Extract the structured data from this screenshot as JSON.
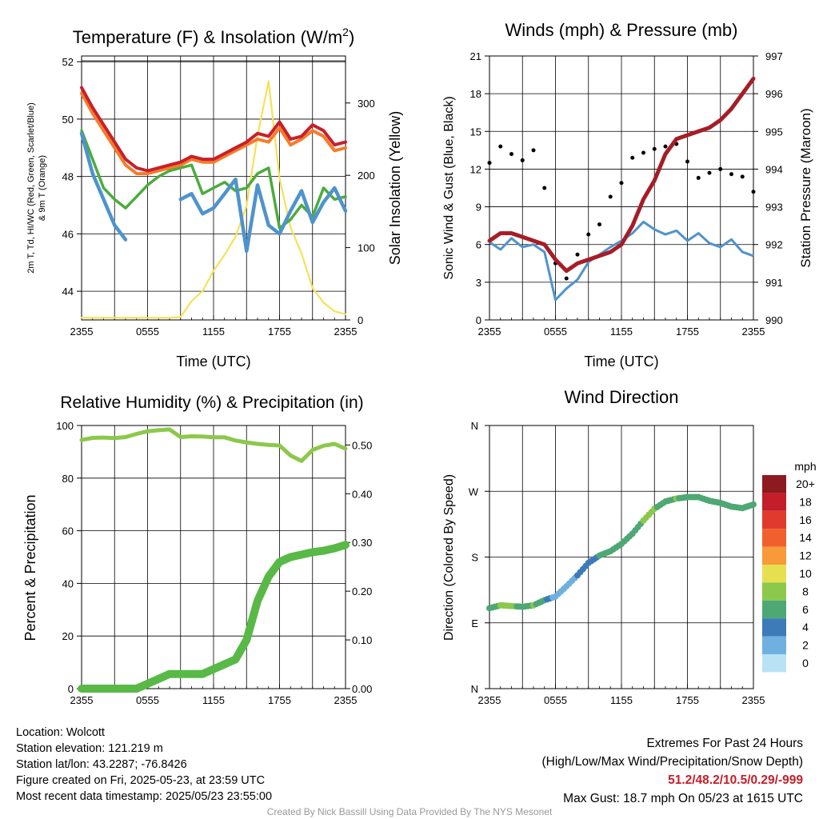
{
  "chart_data": [
    {
      "type": "line",
      "title": "Temperature (F) & Insolation (W/m2)",
      "title_main": "Temperature (F) & Insolation (W/m",
      "title_sup": "2",
      "title_end": ")",
      "xlabel": "Time (UTC)",
      "ylabel_left_line1": "2m T, Td, HI/WC (Red, Green, Scarlet/Blue)",
      "ylabel_left_line2": "& 9m T (Orange)",
      "ylabel_right": "Solar Insolation (Yellow)",
      "x_ticks": [
        "2355",
        "0555",
        "1155",
        "1755",
        "2355"
      ],
      "y_left_ticks": [
        44,
        46,
        48,
        50,
        52
      ],
      "y_left_lim": [
        43,
        52.2
      ],
      "y_right_ticks": [
        0,
        100,
        200,
        300
      ],
      "y_right_lim": [
        0,
        365
      ],
      "x_hours": [
        0,
        1,
        2,
        3,
        4,
        5,
        6,
        7,
        8,
        9,
        10,
        11,
        12,
        13,
        14,
        15,
        16,
        17,
        18,
        19,
        20,
        21,
        22,
        23,
        24
      ],
      "series": [
        {
          "color": "#c8202a",
          "axis": "left",
          "values": [
            51.1,
            50.4,
            49.8,
            49.2,
            48.6,
            48.3,
            48.2,
            48.3,
            48.4,
            48.5,
            48.7,
            48.6,
            48.6,
            48.8,
            49.0,
            49.2,
            49.5,
            49.4,
            49.9,
            49.3,
            49.4,
            49.8,
            49.6,
            49.1,
            49.2
          ]
        },
        {
          "color": "#f47c2a",
          "axis": "left",
          "values": [
            50.9,
            50.2,
            49.6,
            49.0,
            48.4,
            48.1,
            48.1,
            48.2,
            48.3,
            48.4,
            48.6,
            48.5,
            48.5,
            48.7,
            48.9,
            49.1,
            49.3,
            49.2,
            49.7,
            49.1,
            49.3,
            49.6,
            49.4,
            48.9,
            49.0
          ]
        },
        {
          "color": "#4bac3c",
          "axis": "left",
          "values": [
            49.6,
            48.6,
            47.6,
            47.2,
            46.9,
            47.3,
            47.7,
            48.0,
            48.2,
            48.3,
            48.4,
            47.4,
            47.6,
            47.8,
            47.5,
            47.6,
            48.1,
            48.3,
            46.2,
            46.5,
            47.0,
            46.6,
            47.6,
            47.2,
            47.3
          ]
        },
        {
          "color": "#4f93cc",
          "axis": "left",
          "values": [
            49.5,
            48.1,
            47.2,
            46.3,
            45.8,
            null,
            null,
            null,
            null,
            47.2,
            47.4,
            46.7,
            46.9,
            47.4,
            47.9,
            45.4,
            47.7,
            46.3,
            46.0,
            46.8,
            47.5,
            46.4,
            47.1,
            47.6,
            46.8
          ]
        },
        {
          "color": "#f5e15a",
          "axis": "right",
          "values": [
            3,
            3,
            3,
            3,
            3,
            3,
            3,
            3,
            3,
            4,
            26,
            40,
            68,
            90,
            115,
            158,
            255,
            330,
            196,
            128,
            92,
            44,
            24,
            12,
            8
          ]
        }
      ]
    },
    {
      "type": "line",
      "title": "Winds (mph) & Pressure (mb)",
      "xlabel": "Time (UTC)",
      "ylabel_left": "Sonic Wind & Gust (Blue, Black)",
      "ylabel_right": "Station Pressure (Maroon)",
      "x_ticks": [
        "2355",
        "0555",
        "1155",
        "1755",
        "2355"
      ],
      "y_left_ticks": [
        0,
        3,
        6,
        9,
        12,
        15,
        18,
        21
      ],
      "y_left_lim": [
        0,
        21
      ],
      "y_right_ticks": [
        990,
        991,
        992,
        993,
        994,
        995,
        996,
        997
      ],
      "y_right_lim": [
        990,
        997
      ],
      "x_hours": [
        0,
        1,
        2,
        3,
        4,
        5,
        6,
        7,
        8,
        9,
        10,
        11,
        12,
        13,
        14,
        15,
        16,
        17,
        18,
        19,
        20,
        21,
        22,
        23,
        24
      ],
      "series": [
        {
          "color": "#4f93cc",
          "axis": "left",
          "values": [
            6.2,
            5.6,
            6.5,
            5.8,
            6.0,
            5.4,
            1.6,
            2.5,
            3.2,
            4.6,
            5.2,
            5.8,
            6.3,
            6.9,
            7.8,
            7.2,
            6.8,
            7.1,
            6.3,
            6.9,
            6.1,
            5.8,
            6.4,
            5.4,
            5.1
          ]
        },
        {
          "color": "#a51d26",
          "axis": "right",
          "values": [
            992.1,
            992.3,
            992.3,
            992.2,
            992.1,
            992.0,
            991.6,
            991.3,
            991.5,
            991.6,
            991.7,
            991.8,
            992.0,
            992.5,
            993.2,
            993.7,
            994.4,
            994.8,
            994.9,
            995.0,
            995.1,
            995.3,
            995.6,
            996.0,
            996.4
          ]
        },
        {
          "color": "#000000",
          "axis": "left",
          "scatter": true,
          "values": [
            12.5,
            13.8,
            13.2,
            12.7,
            13.5,
            10.5,
            4.5,
            3.3,
            5.2,
            6.8,
            7.6,
            9.8,
            10.9,
            12.9,
            13.3,
            13.6,
            13.8,
            14.0,
            12.6,
            11.3,
            11.7,
            12.0,
            11.6,
            11.4,
            10.2
          ]
        }
      ]
    },
    {
      "type": "line",
      "title": "Relative Humidity (%) & Precipitation (in)",
      "ylabel_left": "Percent & Precipitation",
      "x_ticks": [
        "2355",
        "0555",
        "1155",
        "1755",
        "2355"
      ],
      "y_left_ticks": [
        0,
        20,
        40,
        60,
        80,
        100
      ],
      "y_left_lim": [
        0,
        100
      ],
      "y_right_ticks": [
        "0.00",
        "0.10",
        "0.20",
        "0.30",
        "0.40",
        "0.50"
      ],
      "y_right_lim": [
        0,
        0.54
      ],
      "x_hours": [
        0,
        1,
        2,
        3,
        4,
        5,
        6,
        7,
        8,
        9,
        10,
        11,
        12,
        13,
        14,
        15,
        16,
        17,
        18,
        19,
        20,
        21,
        22,
        23,
        24
      ],
      "series": [
        {
          "color": "#8cc84b",
          "axis": "left",
          "values": [
            94.5,
            95.3,
            95.4,
            95.2,
            95.6,
            96.8,
            97.8,
            98.2,
            98.5,
            95.6,
            95.9,
            95.8,
            95.5,
            95.5,
            94.3,
            93.6,
            93.0,
            92.6,
            92.4,
            88.6,
            86.5,
            90.7,
            92.3,
            93.0,
            91.2
          ]
        },
        {
          "color": "#58b947",
          "axis": "right",
          "values": [
            0.0,
            0.0,
            0.0,
            0.0,
            0.0,
            0.0,
            0.01,
            0.02,
            0.03,
            0.03,
            0.03,
            0.03,
            0.04,
            0.05,
            0.06,
            0.1,
            0.18,
            0.23,
            0.26,
            0.27,
            0.275,
            0.28,
            0.283,
            0.288,
            0.295
          ]
        }
      ]
    },
    {
      "type": "scatter",
      "title": "Wind Direction",
      "ylabel_left": "Direction (Colored By Speed)",
      "x_ticks": [
        "2355",
        "0555",
        "1155",
        "1755",
        "2355"
      ],
      "y_ticks": [
        "N",
        "E",
        "S",
        "W",
        "N"
      ],
      "y_lim_degrees": [
        0,
        360
      ],
      "legend_title": "mph",
      "legend_labels": [
        "20+",
        "18",
        "16",
        "14",
        "12",
        "10",
        "8",
        "6",
        "4",
        "2",
        "0"
      ],
      "legend_colors": [
        "#8c1a1f",
        "#c41e2a",
        "#e03a2e",
        "#f15f2c",
        "#f8993a",
        "#e6e050",
        "#8cc84b",
        "#4ea874",
        "#3d7ab8",
        "#6fb0e0",
        "#b9e2f5"
      ],
      "x_hours": [
        0,
        1,
        2,
        3,
        4,
        5,
        6,
        7,
        8,
        9,
        10,
        11,
        12,
        13,
        14,
        15,
        16,
        17,
        18,
        19,
        20,
        21,
        22,
        23,
        24
      ],
      "series": [
        {
          "name": "direction",
          "values": [
            110,
            114,
            113,
            112,
            114,
            121,
            126,
            140,
            155,
            172,
            182,
            188,
            198,
            212,
            230,
            246,
            256,
            260,
            262,
            262,
            257,
            254,
            249,
            247,
            252
          ],
          "speeds": [
            6,
            7,
            8,
            5,
            7,
            6,
            1,
            2,
            3,
            4,
            5,
            5,
            6,
            6,
            7,
            7,
            6,
            7,
            6,
            6,
            5,
            5,
            6,
            5,
            5
          ]
        }
      ]
    }
  ],
  "footer": {
    "location": "Location: Wolcott",
    "elevation": "Station elevation: 121.219 m",
    "latlon": "Station lat/lon: 43.2287; -76.8426",
    "created": "Figure created on Fri, 2025-05-23, at 23:59 UTC",
    "recent": "Most recent data timestamp: 2025/05/23 23:55:00",
    "extremes_title": "Extremes For Past 24 Hours",
    "extremes_sub": "(High/Low/Max Wind/Precipitation/Snow Depth)",
    "extremes_values": "51.2/48.2/10.5/0.29/-999",
    "max_gust": "Max Gust: 18.7 mph On 05/23 at 1615 UTC",
    "credit": "Created By Nick Bassill Using Data Provided By The NYS Mesonet"
  }
}
